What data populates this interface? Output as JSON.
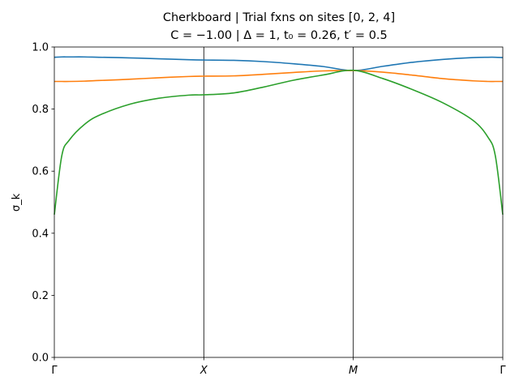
{
  "chart_data": {
    "type": "line",
    "title": "Cherkboard | Trial fxns on sites [0, 2, 4]",
    "subtitle": "C = −1.00 | Δ = 1,  t₀ = 0.26,  t′ = 0.5",
    "xlabel": "",
    "ylabel": "σ_k",
    "ylim": [
      0,
      1
    ],
    "xlim": [
      0,
      3
    ],
    "grid": false,
    "yticks": [
      0.0,
      0.2,
      0.4,
      0.6,
      0.8,
      1.0
    ],
    "ytick_labels": [
      "0.0",
      "0.2",
      "0.4",
      "0.6",
      "0.8",
      "1.0"
    ],
    "xticks": [
      0,
      1,
      2,
      3
    ],
    "xtick_labels": [
      "Γ",
      "X",
      "M",
      "Γ"
    ],
    "vlines": [
      1,
      2
    ],
    "x": [
      0,
      0.05,
      0.1,
      0.2,
      0.3,
      0.5,
      0.7,
      0.9,
      1.0,
      1.2,
      1.4,
      1.6,
      1.8,
      2.0,
      2.2,
      2.4,
      2.6,
      2.8,
      2.9,
      2.95,
      3.0
    ],
    "series": [
      {
        "color": "#1f77b4",
        "values": [
          0.967,
          0.968,
          0.968,
          0.968,
          0.967,
          0.965,
          0.962,
          0.959,
          0.958,
          0.957,
          0.953,
          0.946,
          0.937,
          0.924,
          0.938,
          0.951,
          0.96,
          0.966,
          0.967,
          0.967,
          0.966
        ]
      },
      {
        "color": "#ff7f0e",
        "values": [
          0.889,
          0.889,
          0.889,
          0.89,
          0.892,
          0.896,
          0.901,
          0.905,
          0.906,
          0.907,
          0.912,
          0.918,
          0.923,
          0.924,
          0.919,
          0.909,
          0.898,
          0.891,
          0.889,
          0.889,
          0.889
        ]
      },
      {
        "color": "#2ca02c",
        "values": [
          0.46,
          0.65,
          0.7,
          0.75,
          0.78,
          0.815,
          0.835,
          0.845,
          0.846,
          0.852,
          0.871,
          0.893,
          0.91,
          0.925,
          0.898,
          0.862,
          0.82,
          0.764,
          0.71,
          0.65,
          0.46
        ]
      }
    ]
  }
}
